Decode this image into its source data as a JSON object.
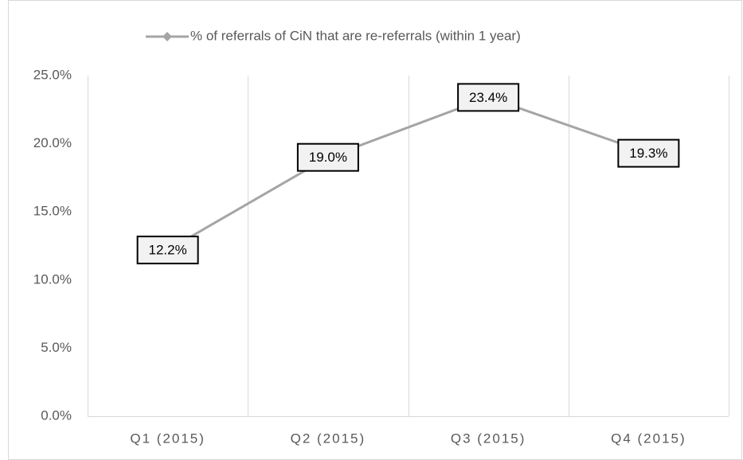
{
  "chart_data": {
    "type": "line",
    "categories": [
      "Q1 (2015)",
      "Q2 (2015)",
      "Q3 (2015)",
      "Q4 (2015)"
    ],
    "series": [
      {
        "name": "% of referrals of CiN that are re-referrals (within 1 year)",
        "color": "#a5a5a5",
        "values": [
          12.2,
          19.0,
          23.4,
          19.3
        ],
        "value_labels": [
          "12.2%",
          "19.0%",
          "23.4%",
          "19.3%"
        ]
      }
    ],
    "ylim": [
      0,
      25
    ],
    "yticks": [
      {
        "value": 0,
        "label": "0.0%"
      },
      {
        "value": 5,
        "label": "5.0%"
      },
      {
        "value": 10,
        "label": "10.0%"
      },
      {
        "value": 15,
        "label": "15.0%"
      },
      {
        "value": 20,
        "label": "20.0%"
      },
      {
        "value": 25,
        "label": "25.0%"
      }
    ],
    "grid": "x",
    "legend": "top"
  }
}
